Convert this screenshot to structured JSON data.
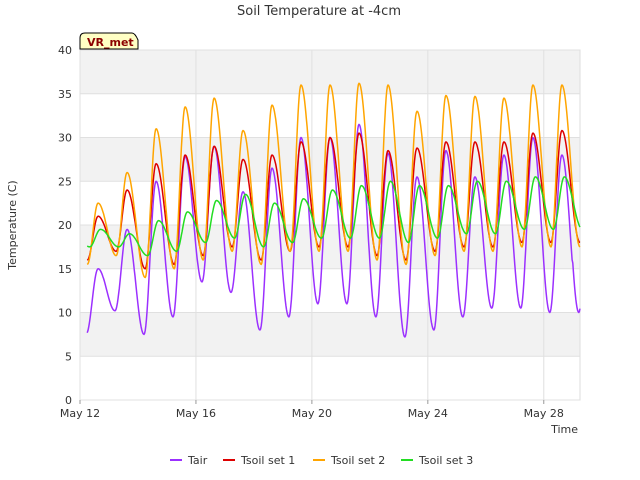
{
  "chart_data": {
    "type": "line",
    "title": "Soil Temperature at -4cm",
    "xlabel": "Time",
    "ylabel": "Temperature (C)",
    "ylim": [
      0,
      40
    ],
    "yticks": [
      0,
      5,
      10,
      15,
      20,
      25,
      30,
      35,
      40
    ],
    "xlim": [
      "2024-05-12",
      "2024-05-29T06:00"
    ],
    "xticks": [
      {
        "date": "2024-05-12",
        "label": "May 12"
      },
      {
        "date": "2024-05-16",
        "label": "May 16"
      },
      {
        "date": "2024-05-20",
        "label": "May 20"
      },
      {
        "date": "2024-05-24",
        "label": "May 24"
      },
      {
        "date": "2024-05-28",
        "label": "May 28"
      }
    ],
    "grid": true,
    "legend_position": "bottom",
    "badge": "VR_met",
    "series": [
      {
        "name": "Tair",
        "color": "#9b30ff",
        "daily_min": [
          7.5,
          10.2,
          7.5,
          9.5,
          13.5,
          12.3,
          8.0,
          9.5,
          11.0,
          11.0,
          9.5,
          7.2,
          8.0,
          9.5,
          10.5,
          10.5,
          10.0
        ],
        "daily_max": [
          15.0,
          19.5,
          25.0,
          27.8,
          29.0,
          23.8,
          26.5,
          30.0,
          30.0,
          31.5,
          28.2,
          25.5,
          28.5,
          25.5,
          28.0,
          30.0,
          28.0
        ]
      },
      {
        "name": "Tsoil set 1",
        "color": "#dd0000",
        "daily_min": [
          16.0,
          17.0,
          15.0,
          15.5,
          16.5,
          17.5,
          16.0,
          17.0,
          17.5,
          17.5,
          16.5,
          16.0,
          17.0,
          17.5,
          17.5,
          18.0,
          18.0
        ],
        "daily_max": [
          21.0,
          24.0,
          27.0,
          28.0,
          29.0,
          27.5,
          28.0,
          29.5,
          30.0,
          30.5,
          28.5,
          28.8,
          29.5,
          29.5,
          29.5,
          30.5,
          30.8
        ]
      },
      {
        "name": "Tsoil set 2",
        "color": "#ffa500",
        "daily_min": [
          15.5,
          16.5,
          14.0,
          15.0,
          16.0,
          17.0,
          15.5,
          17.0,
          17.0,
          17.0,
          16.0,
          15.5,
          16.5,
          17.0,
          17.0,
          17.5,
          17.5
        ],
        "daily_max": [
          22.5,
          26.0,
          31.0,
          33.5,
          34.5,
          30.8,
          33.7,
          36.0,
          36.0,
          36.2,
          36.0,
          33.0,
          34.8,
          34.7,
          34.5,
          36.0,
          36.0
        ]
      },
      {
        "name": "Tsoil set 3",
        "color": "#22dd22",
        "daily_min": [
          17.5,
          17.5,
          16.5,
          17.0,
          18.0,
          18.5,
          17.5,
          18.0,
          18.5,
          18.5,
          18.5,
          18.0,
          18.5,
          19.0,
          19.0,
          19.5,
          19.5
        ],
        "daily_max": [
          19.5,
          19.0,
          20.5,
          21.5,
          22.8,
          23.5,
          22.5,
          23.0,
          24.0,
          24.5,
          25.0,
          24.5,
          24.5,
          25.0,
          25.0,
          25.5,
          25.5
        ]
      }
    ]
  }
}
